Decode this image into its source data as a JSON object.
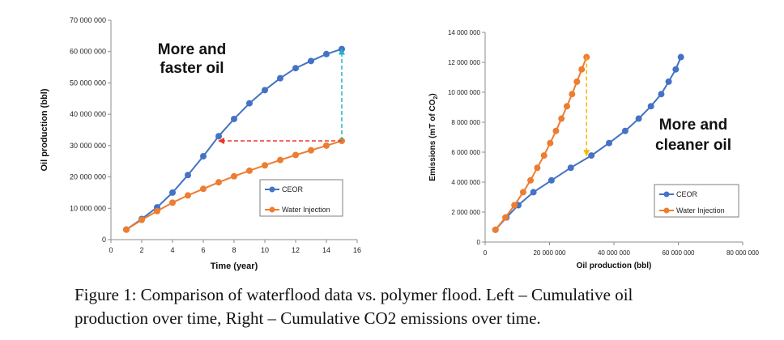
{
  "charts": [
    {
      "type": "line",
      "xlabel": "Time (year)",
      "ylabel": "Oil production (bbl)",
      "xlim": [
        0,
        16
      ],
      "ylim": [
        0,
        70000000
      ],
      "xticks": [
        "0",
        "2",
        "4",
        "6",
        "8",
        "10",
        "12",
        "14",
        "16"
      ],
      "yticks": [
        "0",
        "10 000 000",
        "20 000 000",
        "30 000 000",
        "40 000 000",
        "50 000 000",
        "60 000 000",
        "70 000 000"
      ],
      "annotation": [
        "More and",
        "faster oil"
      ],
      "legend": "bottom-right",
      "series": [
        {
          "name": "CEOR",
          "color": "#4472c4",
          "x": [
            1,
            2,
            3,
            4,
            5,
            6,
            7,
            8,
            9,
            10,
            11,
            12,
            13,
            14,
            15
          ],
          "y": [
            3200000,
            6600000,
            10300000,
            15000000,
            20600000,
            26600000,
            33000000,
            38500000,
            43500000,
            47700000,
            51500000,
            54700000,
            57000000,
            59200000,
            60800000
          ]
        },
        {
          "name": "Water Injection",
          "color": "#ed7d31",
          "x": [
            1,
            2,
            3,
            4,
            5,
            6,
            7,
            8,
            9,
            10,
            11,
            12,
            13,
            14,
            15
          ],
          "y": [
            3200000,
            6300000,
            9100000,
            11800000,
            14100000,
            16200000,
            18300000,
            20200000,
            22000000,
            23700000,
            25400000,
            27000000,
            28500000,
            30000000,
            31500000
          ]
        }
      ],
      "arrows": [
        {
          "color": "#e83a2a",
          "from": [
            15,
            31500000
          ],
          "to": [
            7,
            31500000
          ]
        },
        {
          "color": "#21b5c9",
          "from": [
            15,
            31500000
          ],
          "to": [
            15,
            60800000
          ]
        }
      ]
    },
    {
      "type": "line",
      "xlabel": "Oil production (bbl)",
      "ylabel": "Emissions (mT of CO",
      "ylabel_sub": "2",
      "ylabel_end": ")",
      "xlim": [
        0,
        80000000
      ],
      "ylim": [
        0,
        14000000
      ],
      "xticks": [
        "0",
        "20 000 000",
        "40 000 000",
        "60 000 000",
        "80 000 000"
      ],
      "yticks": [
        "0",
        "2 000 000",
        "4 000 000",
        "6 000 000",
        "8 000 000",
        "10 000 000",
        "12 000 000",
        "14 000 000"
      ],
      "annotation": [
        "More and",
        "cleaner oil"
      ],
      "legend": "bottom-right",
      "series": [
        {
          "name": "CEOR",
          "color": "#4472c4",
          "x": [
            3200000,
            6600000,
            10300000,
            15000000,
            20600000,
            26600000,
            33000000,
            38500000,
            43500000,
            47700000,
            51500000,
            54700000,
            57000000,
            59200000,
            60800000
          ],
          "y": [
            820000,
            1640000,
            2460000,
            3330000,
            4120000,
            4960000,
            5780000,
            6610000,
            7420000,
            8240000,
            9070000,
            9880000,
            10710000,
            11530000,
            12350000
          ]
        },
        {
          "name": "Water Injection",
          "color": "#ed7d31",
          "x": [
            3200000,
            6300000,
            9100000,
            11800000,
            14100000,
            16200000,
            18300000,
            20200000,
            22000000,
            23700000,
            25400000,
            27000000,
            28500000,
            30000000,
            31500000
          ],
          "y": [
            820000,
            1640000,
            2460000,
            3330000,
            4120000,
            4960000,
            5780000,
            6610000,
            7420000,
            8240000,
            9070000,
            9880000,
            10710000,
            11530000,
            12350000
          ]
        }
      ],
      "arrows": [
        {
          "color": "#f5b800",
          "from": [
            31500000,
            12350000
          ],
          "to": [
            31500000,
            5780000
          ]
        }
      ]
    }
  ],
  "caption": [
    "Figure 1: Comparison of waterflood data vs. polymer flood. Left – Cumulative oil",
    "production over time, Right – Cumulative CO2 emissions over time."
  ]
}
